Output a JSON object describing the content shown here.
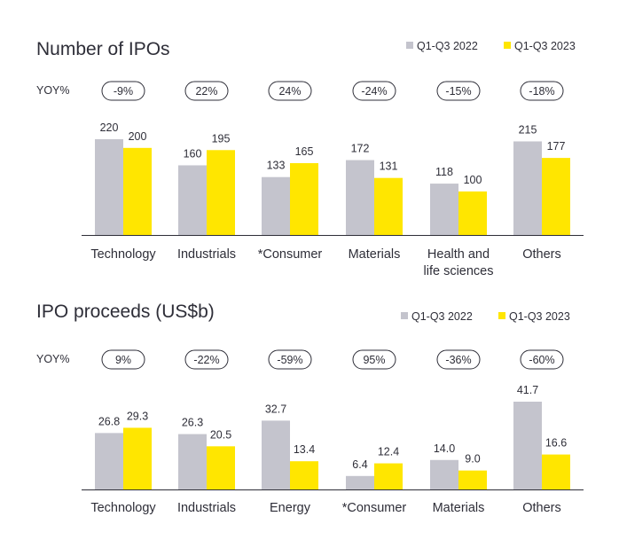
{
  "colors": {
    "series_2022": "#c4c4cd",
    "series_2023": "#ffe600",
    "axis": "#2e2e38",
    "text": "#2e2e38",
    "pill_border": "#2e2e38"
  },
  "chart_data": [
    {
      "type": "bar",
      "title": "Number of IPOs",
      "yoy_label": "YOY%",
      "categories": [
        [
          "Technology"
        ],
        [
          "Industrials"
        ],
        [
          "*Consumer"
        ],
        [
          "Materials"
        ],
        [
          "Health and",
          "life sciences"
        ],
        [
          "Others"
        ]
      ],
      "series": [
        {
          "name": "Q1-Q3 2022",
          "values": [
            220,
            160,
            133,
            172,
            118,
            215
          ]
        },
        {
          "name": "Q1-Q3 2023",
          "values": [
            200,
            195,
            165,
            131,
            100,
            177
          ]
        }
      ],
      "yoy": [
        "-9%",
        "22%",
        "24%",
        "-24%",
        "-15%",
        "-18%"
      ],
      "ylim": [
        0,
        250
      ]
    },
    {
      "type": "bar",
      "title": "IPO proceeds (US$b)",
      "yoy_label": "YOY%",
      "categories": [
        [
          "Technology"
        ],
        [
          "Industrials"
        ],
        [
          "Energy"
        ],
        [
          "*Consumer"
        ],
        [
          "Materials"
        ],
        [
          "Others"
        ]
      ],
      "series": [
        {
          "name": "Q1-Q3 2022",
          "values": [
            26.8,
            26.3,
            32.7,
            6.4,
            14.0,
            41.7
          ]
        },
        {
          "name": "Q1-Q3 2023",
          "values": [
            29.3,
            20.5,
            13.4,
            12.4,
            9.0,
            16.6
          ]
        }
      ],
      "yoy": [
        "9%",
        "-22%",
        "-59%",
        "95%",
        "-36%",
        "-60%"
      ],
      "ylim": [
        0,
        47
      ]
    }
  ]
}
